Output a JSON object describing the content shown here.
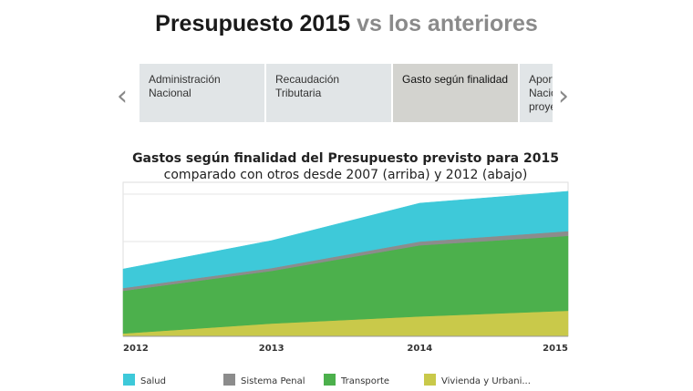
{
  "header": {
    "title_main": "Presupuesto 2015",
    "title_rest": "vs los anteriores"
  },
  "tabs": [
    {
      "label": "Administración Nacional",
      "active": false
    },
    {
      "label": "Recaudación Tributaria",
      "active": false
    },
    {
      "label": "Gasto según finalidad",
      "active": true
    },
    {
      "label": "Aportes Nacionales proyectados",
      "active": false
    }
  ],
  "chart_data": {
    "type": "stacked-area",
    "title": "Gastos según finalidad del Presupuesto previsto para 2015",
    "subtitle": "comparado con otros desde 2007 (arriba) y 2012 (abajo)",
    "categories": [
      "2012",
      "2013",
      "2014",
      "2015"
    ],
    "ylim": [
      0,
      3.25
    ],
    "yticks": [
      0,
      1,
      2,
      3
    ],
    "grid": true,
    "series": [
      {
        "name": "Vivienda y Urbani...",
        "color": "#c9c94a",
        "values": [
          0.06,
          0.27,
          0.42,
          0.54
        ]
      },
      {
        "name": "Transporte",
        "color": "#4cb04c",
        "values": [
          0.9,
          1.11,
          1.5,
          1.58
        ]
      },
      {
        "name": "Sistema Penal",
        "color": "#8c8c8c",
        "values": [
          0.06,
          0.06,
          0.08,
          0.1
        ]
      },
      {
        "name": "Salud",
        "color": "#3ec9d9",
        "values": [
          0.4,
          0.58,
          0.81,
          0.84
        ]
      }
    ],
    "legend_order": [
      3,
      2,
      1,
      0
    ]
  }
}
